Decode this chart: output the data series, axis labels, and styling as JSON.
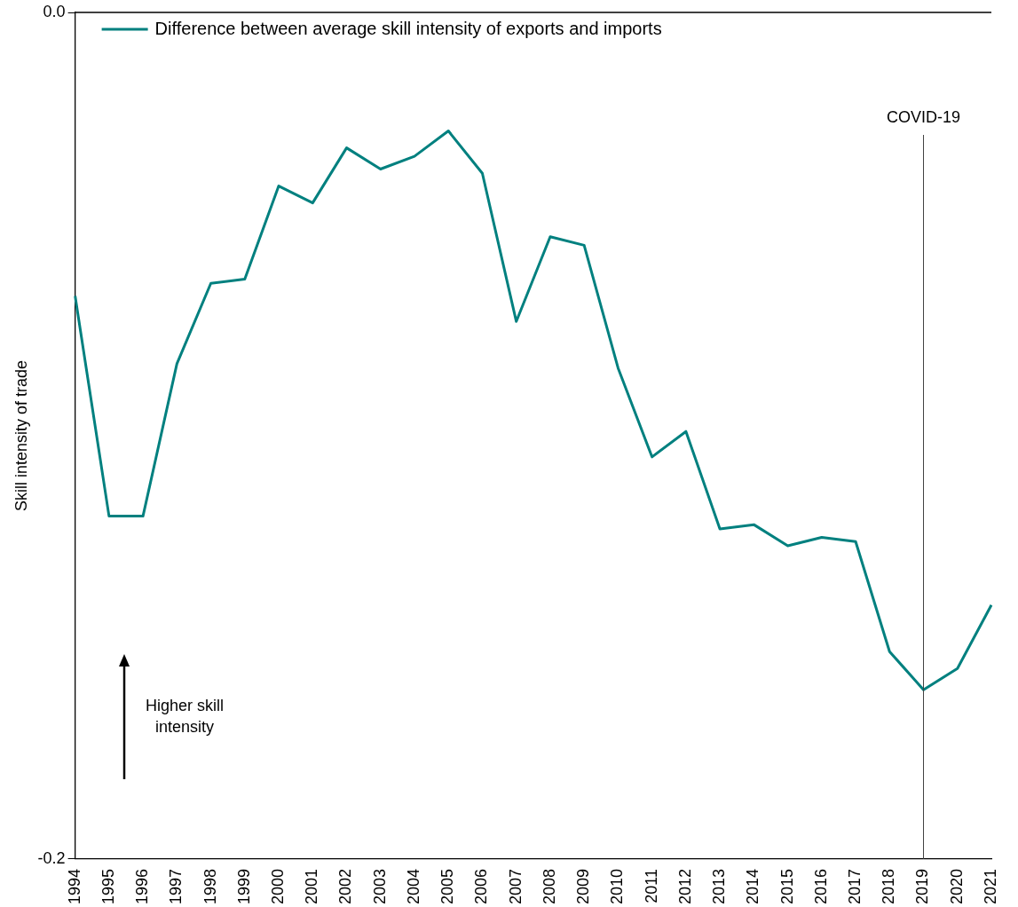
{
  "chart_data": {
    "type": "line",
    "ylabel": "Skill intensity of trade",
    "categories": [
      "1994",
      "1995",
      "1996",
      "1997",
      "1998",
      "1999",
      "2000",
      "2001",
      "2002",
      "2003",
      "2004",
      "2005",
      "2006",
      "2007",
      "2008",
      "2009",
      "2010",
      "2011",
      "2012",
      "2013",
      "2014",
      "2015",
      "2016",
      "2017",
      "2018",
      "2019",
      "2020",
      "2021"
    ],
    "series": [
      {
        "name": "Difference between average skill intensity of exports and imports",
        "color": "#00807f",
        "values": [
          -0.067,
          -0.119,
          -0.119,
          -0.083,
          -0.064,
          -0.063,
          -0.041,
          -0.045,
          -0.032,
          -0.037,
          -0.034,
          -0.028,
          -0.038,
          -0.073,
          -0.053,
          -0.055,
          -0.084,
          -0.105,
          -0.099,
          -0.122,
          -0.121,
          -0.126,
          -0.124,
          -0.125,
          -0.151,
          -0.16,
          -0.155,
          -0.14
        ]
      }
    ],
    "ylim": [
      -0.2,
      0
    ],
    "yticks": [
      {
        "value": 0,
        "label": "0.0"
      },
      {
        "value": -0.2,
        "label": "-0.2"
      }
    ],
    "ref_lines": [
      {
        "axis": "x",
        "value": "2019",
        "label": "COVID-19",
        "color": "#404040"
      }
    ],
    "annotations": [
      "Higher skill intensity"
    ],
    "legend": "top left",
    "grid": false,
    "marker": "none",
    "line_style": "solid"
  }
}
